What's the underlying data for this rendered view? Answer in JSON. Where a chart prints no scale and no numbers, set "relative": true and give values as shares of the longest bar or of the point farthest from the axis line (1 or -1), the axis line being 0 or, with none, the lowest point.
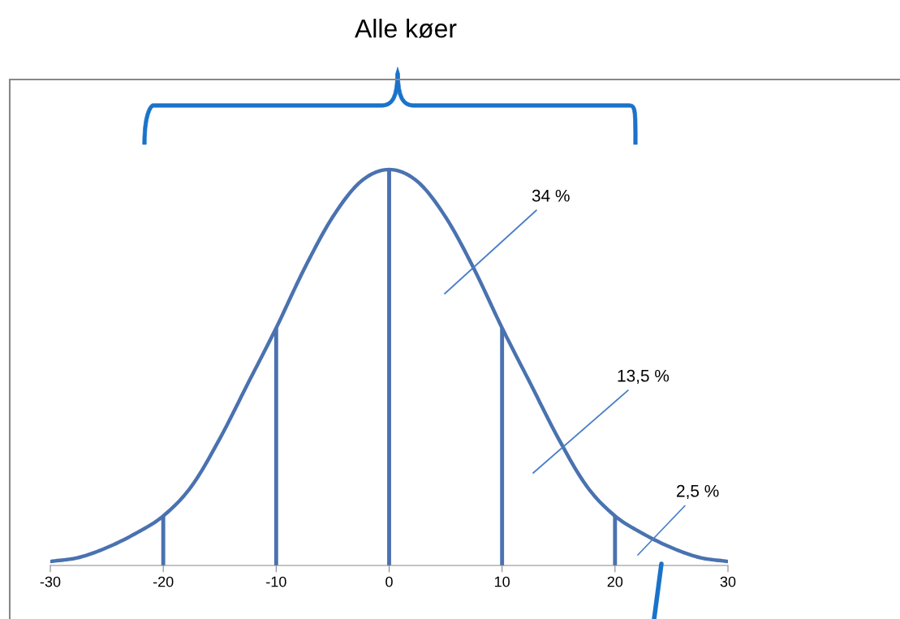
{
  "chart_data": {
    "type": "line",
    "title": "Alle køer",
    "relative": true,
    "tick_labels": "x",
    "xlim": [
      -30,
      30
    ],
    "xticks": [
      -30,
      -20,
      -10,
      0,
      10,
      20,
      30
    ],
    "series": [
      {
        "color": "#4a72b0",
        "x": [
          -30,
          -27.5,
          -25,
          -22.5,
          -20,
          -17.5,
          -15,
          -12.5,
          -10,
          -7.5,
          -5,
          -2.5,
          0,
          2.5,
          5,
          7.5,
          10,
          12.5,
          15,
          17.5,
          20,
          22.5,
          25,
          27.5,
          30
        ],
        "values": [
          0.01,
          0.02,
          0.045,
          0.08,
          0.125,
          0.2,
          0.32,
          0.46,
          0.6,
          0.75,
          0.88,
          0.97,
          1,
          0.97,
          0.88,
          0.75,
          0.6,
          0.46,
          0.32,
          0.2,
          0.125,
          0.08,
          0.045,
          0.02,
          0.01
        ]
      },
      {
        "type": "bar",
        "color": "#4a72b0",
        "x": [
          -20,
          -10,
          0,
          10,
          20
        ],
        "values": [
          0.125,
          0.6,
          1,
          0.6,
          0.125
        ]
      }
    ],
    "annotations": [
      "34 %",
      "13,5 %",
      "2,5 %"
    ]
  }
}
